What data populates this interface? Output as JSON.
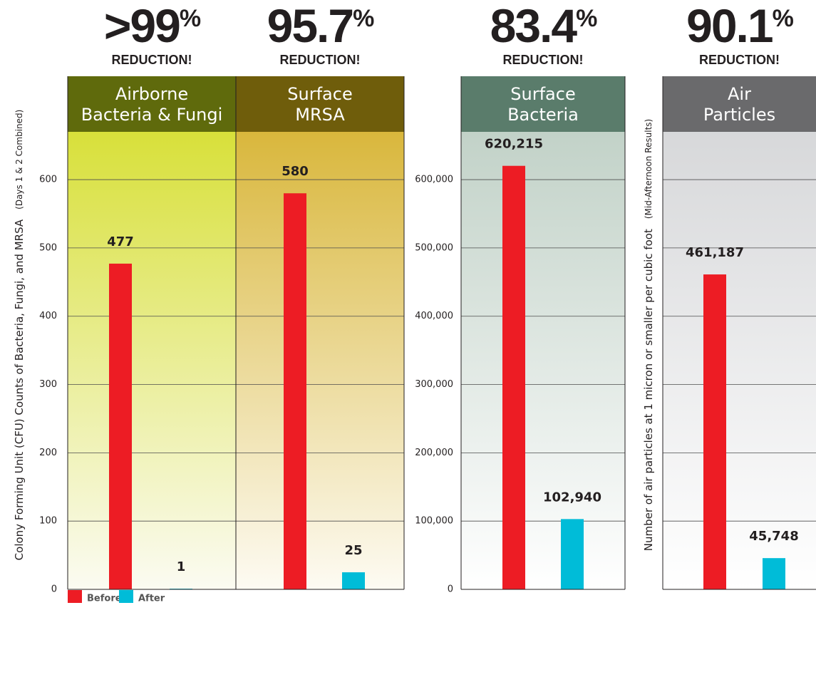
{
  "chart_data": [
    {
      "type": "bar",
      "headline": ">99",
      "headline_unit": "%",
      "subheadline": "REDUCTION!",
      "title": [
        "Airborne",
        "Bacteria & Fungi"
      ],
      "ylabel": "Colony Forming Unit (CFU) Counts of Bacteria, Fungi, and MRSA",
      "ylabel_note": "(Days 1 & 2 Combined)",
      "header_color": "#5f6a0c",
      "background": [
        "#d8e03a",
        "#fbfbf2"
      ],
      "series": [
        {
          "name": "Before",
          "color": "#ed1c24",
          "values": [
            477
          ]
        },
        {
          "name": "After",
          "color": "#00bcd8",
          "values": [
            1
          ]
        }
      ],
      "ylim": [
        0,
        670
      ],
      "yticks": [
        0,
        100,
        200,
        300,
        400,
        500,
        600
      ],
      "ytick_labels": true
    },
    {
      "type": "bar",
      "headline": "95.7",
      "headline_unit": "%",
      "subheadline": "REDUCTION!",
      "title": [
        "Surface",
        "MRSA"
      ],
      "header_color": "#6f5d0b",
      "background": [
        "#d9b73c",
        "#fdfbf3"
      ],
      "series": [
        {
          "name": "Before",
          "color": "#ed1c24",
          "values": [
            580
          ]
        },
        {
          "name": "After",
          "color": "#00bcd8",
          "values": [
            25
          ]
        }
      ],
      "ylim": [
        0,
        670
      ],
      "yticks": [
        0,
        100,
        200,
        300,
        400,
        500,
        600
      ],
      "ytick_labels": false
    },
    {
      "type": "bar",
      "headline": "83.4",
      "headline_unit": "%",
      "subheadline": "REDUCTION!",
      "title": [
        "Surface",
        "Bacteria"
      ],
      "header_color": "#5a7c6b",
      "background": [
        "#c2d2c8",
        "#ffffff"
      ],
      "series": [
        {
          "name": "Before",
          "color": "#ed1c24",
          "values": [
            620215
          ],
          "value_labels": [
            "620,215"
          ]
        },
        {
          "name": "After",
          "color": "#00bcd8",
          "values": [
            102940
          ],
          "value_labels": [
            "102,940"
          ]
        }
      ],
      "ylim": [
        0,
        670000
      ],
      "yticks": [
        0,
        {
          "value": 100000,
          "label": "100,000"
        },
        {
          "value": 200000,
          "label": "200,000"
        },
        {
          "value": 300000,
          "label": "300,000"
        },
        {
          "value": 400000,
          "label": "400,000"
        },
        {
          "value": 500000,
          "label": "500,000"
        },
        {
          "value": 600000,
          "label": "600,000"
        }
      ],
      "ytick_labels": true
    },
    {
      "type": "bar",
      "headline": "90.1",
      "headline_unit": "%",
      "subheadline": "REDUCTION!",
      "title": [
        "Air",
        "Particles"
      ],
      "ylabel": "Number of air particles at 1 micron or smaller per cubic foot",
      "ylabel_note": "(Mid-Afternoon Results)",
      "header_color": "#6a6a6c",
      "background": [
        "#d7d8da",
        "#ffffff"
      ],
      "series": [
        {
          "name": "Before",
          "color": "#ed1c24",
          "values": [
            461187
          ],
          "value_labels": [
            "461,187"
          ]
        },
        {
          "name": "After",
          "color": "#00bcd8",
          "values": [
            45748
          ],
          "value_labels": [
            "45,748"
          ]
        }
      ],
      "ylim": [
        0,
        670000
      ],
      "yticks": [
        0,
        100000,
        200000,
        300000,
        400000,
        500000,
        600000
      ],
      "ytick_labels": false
    }
  ]
}
